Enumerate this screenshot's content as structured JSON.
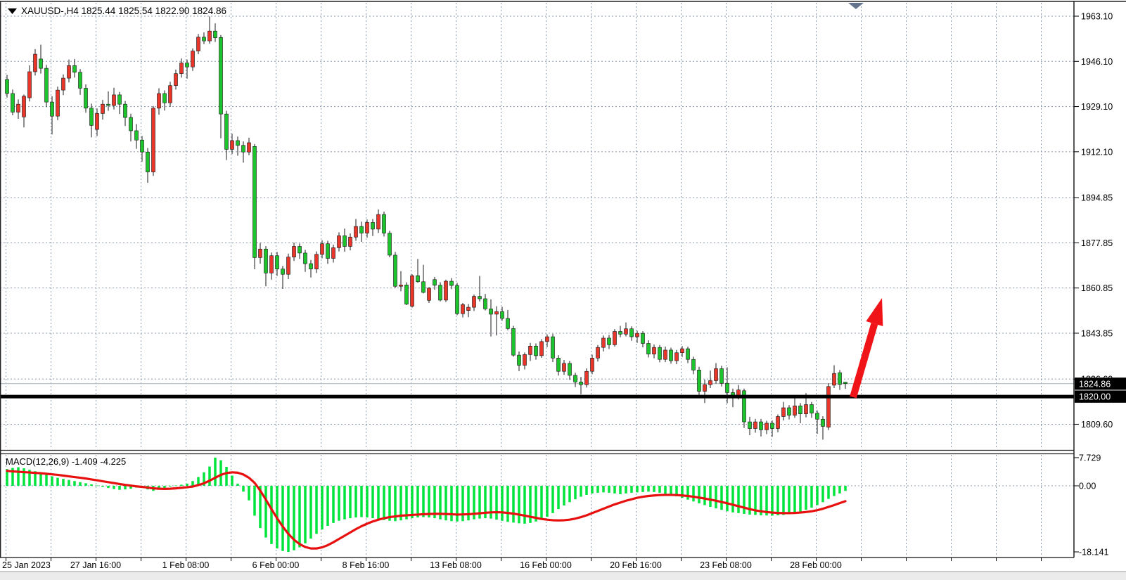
{
  "window": {
    "title_text": "XAUUSD-,H4  1825.44 1825.54 1822.90 1824.86"
  },
  "indicator_label": {
    "text": "MACD(12,26,9) -1.409 -4.225"
  },
  "chart_data": {
    "type": "candlestick",
    "symbol": "XAUUSD-",
    "timeframe": "H4",
    "color_convention": "red = bullish candle, green = bearish candle",
    "current_ohlc": {
      "open": 1825.44,
      "high": 1825.54,
      "low": 1822.9,
      "close": 1824.86
    },
    "price_axis_ticks": [
      "1963.10",
      "1946.10",
      "1929.10",
      "1912.10",
      "1894.85",
      "1877.85",
      "1860.85",
      "1843.85",
      "1826.60",
      "1809.60"
    ],
    "time_labels": [
      {
        "text": "25 Jan 2023",
        "candle_index": 0
      },
      {
        "text": "27 Jan 16:00",
        "candle_index": 16
      },
      {
        "text": "1 Feb 08:00",
        "candle_index": 32
      },
      {
        "text": "6 Feb 00:00",
        "candle_index": 48
      },
      {
        "text": "8 Feb 16:00",
        "candle_index": 64
      },
      {
        "text": "13 Feb 08:00",
        "candle_index": 80
      },
      {
        "text": "16 Feb 00:00",
        "candle_index": 96
      },
      {
        "text": "20 Feb 16:00",
        "candle_index": 112
      },
      {
        "text": "23 Feb 08:00",
        "candle_index": 128
      },
      {
        "text": "28 Feb 00:00",
        "candle_index": 144
      }
    ],
    "levels": {
      "horizontal_line": 1820.0,
      "bid_line": 1824.86
    },
    "price_badges": [
      {
        "text": "1824.86",
        "price": 1824.86
      },
      {
        "text": "1820.00",
        "price": 1820.0
      }
    ],
    "ohlc": [
      [
        1939.3,
        1941.0,
        1932.5,
        1934.0
      ],
      [
        1934.0,
        1935.5,
        1925.8,
        1927.0
      ],
      [
        1927.0,
        1931.8,
        1924.5,
        1930.0
      ],
      [
        1925.2,
        1933.6,
        1921.3,
        1933.0
      ],
      [
        1932.4,
        1944.6,
        1931.0,
        1942.2
      ],
      [
        1942.2,
        1950.7,
        1940.8,
        1948.8
      ],
      [
        1947.0,
        1952.4,
        1941.5,
        1943.5
      ],
      [
        1943.5,
        1944.8,
        1928.9,
        1930.8
      ],
      [
        1930.8,
        1933.0,
        1918.6,
        1925.5
      ],
      [
        1925.5,
        1936.6,
        1924.0,
        1935.3
      ],
      [
        1935.3,
        1941.2,
        1933.4,
        1939.8
      ],
      [
        1939.8,
        1946.8,
        1938.2,
        1944.5
      ],
      [
        1944.5,
        1947.0,
        1940.0,
        1942.0
      ],
      [
        1942.0,
        1943.2,
        1933.5,
        1936.0
      ],
      [
        1936.0,
        1937.4,
        1926.8,
        1928.5
      ],
      [
        1928.5,
        1930.2,
        1917.5,
        1922.0
      ],
      [
        1920.5,
        1928.4,
        1918.0,
        1926.5
      ],
      [
        1926.5,
        1931.6,
        1924.2,
        1930.0
      ],
      [
        1930.0,
        1934.8,
        1927.5,
        1929.5
      ],
      [
        1929.5,
        1936.2,
        1928.0,
        1933.5
      ],
      [
        1933.5,
        1934.6,
        1926.3,
        1930.0
      ],
      [
        1930.0,
        1931.2,
        1921.8,
        1925.0
      ],
      [
        1925.0,
        1926.4,
        1916.0,
        1920.0
      ],
      [
        1920.0,
        1922.5,
        1913.2,
        1916.5
      ],
      [
        1916.5,
        1918.0,
        1908.4,
        1912.0
      ],
      [
        1912.0,
        1913.5,
        1900.4,
        1904.5
      ],
      [
        1904.5,
        1929.3,
        1903.0,
        1928.5
      ],
      [
        1928.5,
        1936.0,
        1926.0,
        1934.0
      ],
      [
        1934.0,
        1935.2,
        1927.6,
        1930.5
      ],
      [
        1930.5,
        1938.4,
        1929.0,
        1937.0
      ],
      [
        1937.0,
        1943.0,
        1935.5,
        1941.5
      ],
      [
        1941.5,
        1947.2,
        1940.0,
        1945.5
      ],
      [
        1945.5,
        1946.8,
        1939.6,
        1944.0
      ],
      [
        1944.0,
        1951.0,
        1942.5,
        1950.0
      ],
      [
        1950.0,
        1956.4,
        1948.8,
        1955.2
      ],
      [
        1955.2,
        1957.0,
        1952.6,
        1953.8
      ],
      [
        1953.8,
        1963.0,
        1952.8,
        1957.5
      ],
      [
        1957.5,
        1960.4,
        1953.4,
        1955.0
      ],
      [
        1955.1,
        1956.0,
        1917.2,
        1926.3
      ],
      [
        1926.3,
        1927.5,
        1909.0,
        1913.0
      ],
      [
        1913.0,
        1918.9,
        1911.2,
        1916.3
      ],
      [
        1916.3,
        1917.8,
        1910.6,
        1914.5
      ],
      [
        1914.5,
        1916.0,
        1908.0,
        1912.0
      ],
      [
        1912.0,
        1917.4,
        1910.8,
        1915.5
      ],
      [
        1914.1,
        1915.0,
        1867.9,
        1872.3
      ],
      [
        1872.3,
        1877.8,
        1870.0,
        1875.5
      ],
      [
        1875.5,
        1876.6,
        1861.5,
        1866.5
      ],
      [
        1866.5,
        1874.2,
        1864.0,
        1873.0
      ],
      [
        1873.0,
        1874.4,
        1865.4,
        1868.0
      ],
      [
        1868.0,
        1869.2,
        1860.5,
        1866.0
      ],
      [
        1866.0,
        1873.8,
        1864.2,
        1872.5
      ],
      [
        1872.5,
        1877.9,
        1871.0,
        1876.5
      ],
      [
        1876.5,
        1877.6,
        1871.8,
        1874.0
      ],
      [
        1874.0,
        1875.2,
        1866.9,
        1870.0
      ],
      [
        1870.0,
        1871.4,
        1864.8,
        1868.0
      ],
      [
        1868.0,
        1874.6,
        1866.5,
        1873.5
      ],
      [
        1873.5,
        1878.8,
        1872.0,
        1877.5
      ],
      [
        1877.5,
        1878.6,
        1869.9,
        1872.0
      ],
      [
        1872.0,
        1877.2,
        1870.4,
        1876.0
      ],
      [
        1876.0,
        1881.8,
        1874.6,
        1880.5
      ],
      [
        1880.5,
        1883.2,
        1874.5,
        1876.5
      ],
      [
        1876.5,
        1881.4,
        1875.0,
        1880.0
      ],
      [
        1880.0,
        1886.8,
        1878.6,
        1884.0
      ],
      [
        1884.0,
        1885.8,
        1878.2,
        1881.5
      ],
      [
        1881.5,
        1886.6,
        1879.8,
        1885.5
      ],
      [
        1885.5,
        1886.8,
        1880.4,
        1883.0
      ],
      [
        1883.0,
        1890.4,
        1881.6,
        1888.5
      ],
      [
        1888.5,
        1889.6,
        1880.2,
        1881.5
      ],
      [
        1881.5,
        1882.4,
        1872.4,
        1873.2
      ],
      [
        1873.2,
        1874.4,
        1860.9,
        1861.5
      ],
      [
        1861.5,
        1867.2,
        1859.6,
        1862.0
      ],
      [
        1862.0,
        1863.0,
        1854.4,
        1854.8
      ],
      [
        1854.0,
        1866.0,
        1853.5,
        1865.5
      ],
      [
        1865.5,
        1871.8,
        1862.8,
        1863.2
      ],
      [
        1863.2,
        1869.6,
        1858.8,
        1859.2
      ],
      [
        1856.2,
        1861.2,
        1855.2,
        1860.8
      ],
      [
        1864.0,
        1865.0,
        1860.2,
        1861.9
      ],
      [
        1861.9,
        1863.0,
        1855.8,
        1856.3
      ],
      [
        1856.3,
        1864.0,
        1855.6,
        1863.4
      ],
      [
        1863.4,
        1864.6,
        1860.4,
        1861.8
      ],
      [
        1861.8,
        1862.8,
        1850.6,
        1851.2
      ],
      [
        1851.2,
        1855.2,
        1849.8,
        1854.6
      ],
      [
        1852.4,
        1854.8,
        1849.9,
        1853.6
      ],
      [
        1853.6,
        1858.4,
        1852.2,
        1857.7
      ],
      [
        1857.7,
        1865.4,
        1855.8,
        1856.8
      ],
      [
        1856.8,
        1858.6,
        1852.4,
        1853.0
      ],
      [
        1853.0,
        1856.6,
        1842.6,
        1851.0
      ],
      [
        1851.0,
        1854.0,
        1843.0,
        1852.0
      ],
      [
        1852.0,
        1853.8,
        1848.6,
        1849.4
      ],
      [
        1849.4,
        1852.6,
        1845.0,
        1845.6
      ],
      [
        1845.6,
        1846.6,
        1835.0,
        1835.6
      ],
      [
        1835.6,
        1837.0,
        1829.6,
        1831.8
      ],
      [
        1831.8,
        1836.6,
        1830.2,
        1835.8
      ],
      [
        1835.8,
        1840.2,
        1833.4,
        1839.0
      ],
      [
        1839.0,
        1840.0,
        1833.9,
        1835.4
      ],
      [
        1835.4,
        1841.6,
        1834.6,
        1840.7
      ],
      [
        1840.7,
        1843.4,
        1838.6,
        1842.5
      ],
      [
        1842.5,
        1843.6,
        1833.0,
        1834.5
      ],
      [
        1834.5,
        1835.6,
        1827.9,
        1829.5
      ],
      [
        1829.5,
        1833.8,
        1828.2,
        1832.5
      ],
      [
        1832.5,
        1833.4,
        1826.3,
        1828.0
      ],
      [
        1828.0,
        1829.0,
        1823.6,
        1825.5
      ],
      [
        1825.5,
        1827.4,
        1820.9,
        1824.5
      ],
      [
        1824.5,
        1830.6,
        1823.4,
        1829.5
      ],
      [
        1829.5,
        1835.8,
        1828.4,
        1834.5
      ],
      [
        1834.5,
        1839.4,
        1833.2,
        1838.5
      ],
      [
        1838.5,
        1843.0,
        1837.0,
        1842.0
      ],
      [
        1842.0,
        1843.2,
        1837.9,
        1839.5
      ],
      [
        1839.5,
        1845.4,
        1838.8,
        1844.5
      ],
      [
        1844.5,
        1846.6,
        1842.3,
        1843.5
      ],
      [
        1843.5,
        1847.9,
        1842.6,
        1845.5
      ],
      [
        1845.5,
        1846.4,
        1841.0,
        1842.5
      ],
      [
        1842.5,
        1844.8,
        1840.2,
        1843.8
      ],
      [
        1843.8,
        1844.6,
        1838.5,
        1840.0
      ],
      [
        1840.0,
        1841.2,
        1834.7,
        1836.0
      ],
      [
        1836.0,
        1839.6,
        1834.4,
        1838.5
      ],
      [
        1838.5,
        1839.4,
        1832.9,
        1834.0
      ],
      [
        1834.0,
        1838.8,
        1833.0,
        1837.5
      ],
      [
        1837.5,
        1838.4,
        1832.4,
        1833.5
      ],
      [
        1833.5,
        1837.6,
        1832.2,
        1836.5
      ],
      [
        1836.5,
        1839.0,
        1834.9,
        1838.0
      ],
      [
        1838.0,
        1838.8,
        1832.6,
        1834.0
      ],
      [
        1834.0,
        1835.0,
        1828.4,
        1830.0
      ],
      [
        1830.0,
        1831.2,
        1820.7,
        1822.0
      ],
      [
        1822.0,
        1826.4,
        1817.6,
        1824.5
      ],
      [
        1824.5,
        1829.8,
        1823.2,
        1826.0
      ],
      [
        1826.0,
        1832.6,
        1824.9,
        1830.5
      ],
      [
        1830.5,
        1831.6,
        1823.8,
        1825.0
      ],
      [
        1825.0,
        1831.0,
        1817.5,
        1821.5
      ],
      [
        1821.5,
        1823.0,
        1816.0,
        1820.5
      ],
      [
        1820.5,
        1824.4,
        1818.9,
        1822.5
      ],
      [
        1822.2,
        1823.0,
        1808.2,
        1810.5
      ],
      [
        1810.5,
        1812.4,
        1805.5,
        1808.0
      ],
      [
        1808.0,
        1811.6,
        1806.4,
        1810.5
      ],
      [
        1810.5,
        1811.6,
        1805.0,
        1807.5
      ],
      [
        1807.5,
        1810.9,
        1805.9,
        1810.0
      ],
      [
        1810.0,
        1811.0,
        1804.9,
        1808.0
      ],
      [
        1808.0,
        1813.3,
        1806.6,
        1812.5
      ],
      [
        1812.5,
        1818.0,
        1811.0,
        1815.8
      ],
      [
        1815.8,
        1816.8,
        1811.4,
        1813.0
      ],
      [
        1813.0,
        1819.5,
        1812.0,
        1816.5
      ],
      [
        1816.5,
        1817.6,
        1810.0,
        1813.5
      ],
      [
        1813.5,
        1821.3,
        1812.2,
        1817.0
      ],
      [
        1817.0,
        1818.0,
        1812.0,
        1813.8
      ],
      [
        1813.8,
        1814.8,
        1806.0,
        1811.5
      ],
      [
        1811.5,
        1812.6,
        1803.8,
        1808.8
      ],
      [
        1808.5,
        1825.0,
        1807.4,
        1823.8
      ],
      [
        1824.3,
        1831.8,
        1823.2,
        1828.7
      ],
      [
        1829.0,
        1830.0,
        1822.5,
        1824.6
      ],
      [
        1825.44,
        1825.54,
        1822.9,
        1824.86
      ]
    ],
    "macd": {
      "name": "MACD",
      "params": "12,26,9",
      "current_macd": -1.409,
      "current_signal": -4.225,
      "axis_ticks": [
        {
          "text": "7.729",
          "value": 7.729
        },
        {
          "text": "0.00",
          "value": 0
        },
        {
          "text": "-18.141",
          "value": -18.141
        }
      ],
      "histogram": [
        4.6,
        4.9,
        5.1,
        4.8,
        4.4,
        4.0,
        3.5,
        3.0,
        2.6,
        2.2,
        1.9,
        1.6,
        1.3,
        1.0,
        0.7,
        0.4,
        0.1,
        -0.3,
        -0.6,
        -0.9,
        -1.1,
        -1.0,
        -0.8,
        -0.5,
        -0.6,
        -1.0,
        -1.4,
        -1.0,
        -0.6,
        -0.2,
        0.1,
        0.3,
        0.6,
        1.3,
        2.4,
        3.7,
        5.3,
        7.729,
        7.0,
        5.2,
        2.8,
        0.6,
        -1.6,
        -4.0,
        -8.2,
        -11.6,
        -14.2,
        -16.0,
        -17.2,
        -17.9,
        -18.141,
        -17.7,
        -16.9,
        -15.8,
        -14.5,
        -13.2,
        -12.0,
        -11.0,
        -10.2,
        -9.6,
        -9.2,
        -8.9,
        -8.7,
        -8.6,
        -8.7,
        -8.9,
        -9.1,
        -9.4,
        -9.6,
        -9.7,
        -9.5,
        -9.2,
        -8.9,
        -8.7,
        -8.6,
        -8.7,
        -8.9,
        -9.2,
        -9.5,
        -9.7,
        -9.8,
        -9.7,
        -9.5,
        -9.2,
        -9.0,
        -8.9,
        -9.0,
        -9.3,
        -9.6,
        -9.9,
        -10.1,
        -10.3,
        -10.4,
        -10.2,
        -9.8,
        -9.3,
        -8.5,
        -7.5,
        -6.4,
        -5.4,
        -4.5,
        -3.7,
        -3.0,
        -2.5,
        -2.1,
        -1.9,
        -1.8,
        -1.9,
        -2.1,
        -2.3,
        -2.1,
        -1.9,
        -1.8,
        -1.7,
        -1.6,
        -1.7,
        -1.9,
        -2.2,
        -2.5,
        -2.9,
        -3.3,
        -3.8,
        -4.3,
        -4.8,
        -5.3,
        -5.8,
        -6.2,
        -6.6,
        -7.0,
        -7.3,
        -7.5,
        -7.7,
        -7.9,
        -8.0,
        -8.1,
        -8.15,
        -8.2,
        -8.1,
        -8.0,
        -7.8,
        -7.5,
        -7.1,
        -6.6,
        -6.0,
        -5.3,
        -4.5,
        -3.6,
        -2.8,
        -2.1,
        -1.409
      ],
      "signal": [
        4.1,
        3.95,
        3.85,
        3.75,
        3.65,
        3.55,
        3.45,
        3.3,
        3.15,
        3.0,
        2.8,
        2.6,
        2.4,
        2.2,
        2.0,
        1.75,
        1.5,
        1.25,
        1.0,
        0.75,
        0.5,
        0.25,
        0.05,
        -0.15,
        -0.3,
        -0.5,
        -0.7,
        -0.8,
        -0.85,
        -0.8,
        -0.7,
        -0.55,
        -0.4,
        -0.2,
        0.2,
        0.7,
        1.4,
        2.2,
        3.0,
        3.5,
        3.7,
        3.6,
        3.1,
        2.2,
        0.8,
        -1.3,
        -3.8,
        -6.4,
        -8.9,
        -11.2,
        -13.2,
        -14.8,
        -16.0,
        -16.8,
        -17.2,
        -17.2,
        -16.9,
        -16.3,
        -15.5,
        -14.6,
        -13.7,
        -12.8,
        -11.9,
        -11.1,
        -10.4,
        -9.8,
        -9.3,
        -8.9,
        -8.6,
        -8.4,
        -8.2,
        -8.1,
        -8.0,
        -7.9,
        -7.8,
        -7.75,
        -7.7,
        -7.7,
        -7.75,
        -7.8,
        -7.9,
        -7.85,
        -7.8,
        -7.7,
        -7.55,
        -7.4,
        -7.3,
        -7.25,
        -7.3,
        -7.45,
        -7.65,
        -7.9,
        -8.2,
        -8.5,
        -8.8,
        -9.1,
        -9.3,
        -9.45,
        -9.5,
        -9.45,
        -9.3,
        -9.0,
        -8.6,
        -8.1,
        -7.5,
        -6.9,
        -6.3,
        -5.7,
        -5.1,
        -4.6,
        -4.1,
        -3.7,
        -3.3,
        -3.0,
        -2.8,
        -2.65,
        -2.55,
        -2.5,
        -2.5,
        -2.55,
        -2.65,
        -2.8,
        -3.0,
        -3.25,
        -3.5,
        -3.8,
        -4.1,
        -4.45,
        -4.8,
        -5.2,
        -5.6,
        -6.0,
        -6.4,
        -6.75,
        -7.0,
        -7.2,
        -7.35,
        -7.45,
        -7.5,
        -7.5,
        -7.45,
        -7.35,
        -7.2,
        -7.0,
        -6.7,
        -6.3,
        -5.8,
        -5.3,
        -4.75,
        -4.225
      ]
    }
  },
  "colors": {
    "bull": "#e8362a",
    "bear": "#1dc32b",
    "wick": "#1a1a1a",
    "hist": "#00e43c",
    "signal_line": "#e8100f",
    "grid": "#8a98ac",
    "black_line": "#000000",
    "bid_line": "#a9b2ba",
    "badge_bg": "#000000",
    "badge_text": "#ffffff",
    "arrow": "#f01418",
    "marker": "#64748c"
  }
}
